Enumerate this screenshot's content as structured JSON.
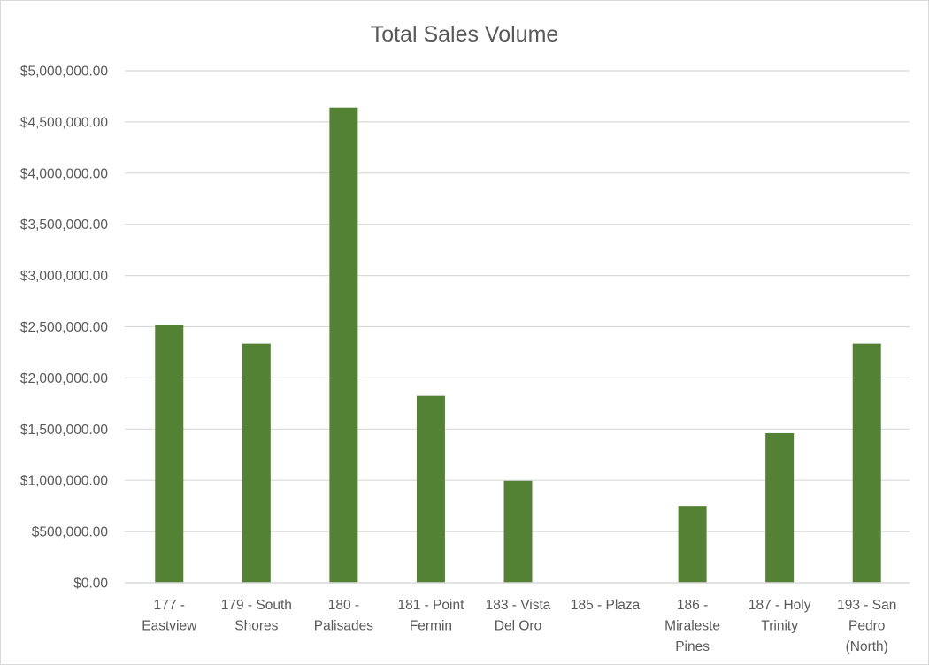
{
  "chart_data": {
    "type": "bar",
    "title": "Total Sales Volume",
    "xlabel": "",
    "ylabel": "",
    "ylim": [
      0,
      5000000
    ],
    "yticks": [
      0,
      500000,
      1000000,
      1500000,
      2000000,
      2500000,
      3000000,
      3500000,
      4000000,
      4500000,
      5000000
    ],
    "ytick_labels": [
      "$0.00",
      "$500,000.00",
      "$1,000,000.00",
      "$1,500,000.00",
      "$2,000,000.00",
      "$2,500,000.00",
      "$3,000,000.00",
      "$3,500,000.00",
      "$4,000,000.00",
      "$4,500,000.00",
      "$5,000,000.00"
    ],
    "categories": [
      "177 - Eastview",
      "179 - South Shores",
      "180 - Palisades",
      "181 - Point Fermin",
      "183 - Vista Del Oro",
      "185 - Plaza",
      "186 - Miraleste Pines",
      "187 - Holy Trinity",
      "193 - San Pedro (North)"
    ],
    "category_label_lines": [
      [
        "177 -",
        "Eastview"
      ],
      [
        "179 - South",
        "Shores"
      ],
      [
        "180 -",
        "Palisades"
      ],
      [
        "181 - Point",
        "Fermin"
      ],
      [
        "183 - Vista",
        "Del Oro"
      ],
      [
        "185 - Plaza"
      ],
      [
        "186 -",
        "Miraleste",
        "Pines"
      ],
      [
        "187 - Holy",
        "Trinity"
      ],
      [
        "193 - San",
        "Pedro",
        "(North)"
      ]
    ],
    "values": [
      2515000,
      2335000,
      4640000,
      1825000,
      995000,
      0,
      750000,
      1460000,
      2335000
    ],
    "bar_color": "#548235",
    "grid": true,
    "gridline_color": "#d9d9d9",
    "legend": "none"
  }
}
